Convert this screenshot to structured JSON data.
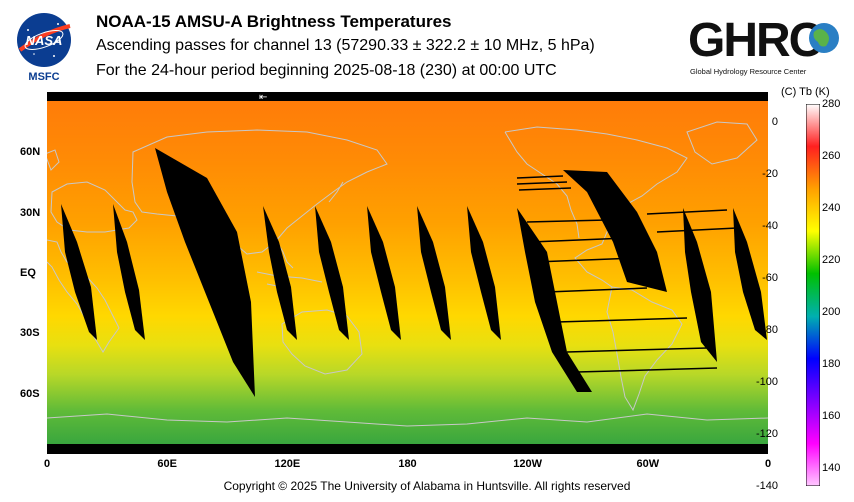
{
  "header": {
    "title": "NOAA-15 AMSU-A Brightness Temperatures",
    "subtitle": "Ascending passes for channel 13 (57290.33 ± 322.2 ± 10 MHz, 5 hPa)",
    "period": "For the 24-hour period beginning 2025-08-18 (230) at 00:00 UTC"
  },
  "logos": {
    "nasa_text": "NASA",
    "nasa_sub": "MSFC",
    "ghrc_text": "GHRC",
    "ghrc_sub": "Global Hydrology Resource Center"
  },
  "map": {
    "arrow_glyph": "⇤",
    "x_tick_labels": [
      "0",
      "60E",
      "120E",
      "180",
      "120W",
      "60W",
      "0"
    ],
    "y_tick_labels": [
      "60N",
      "30N",
      "EQ",
      "30S",
      "60S"
    ],
    "lat_values": [
      60,
      30,
      0,
      -30,
      -60
    ],
    "lon_values": [
      0,
      60,
      120,
      180,
      240,
      300,
      360
    ],
    "colors": {
      "warm_north": "#ff7a0a",
      "mid": "#ffa000",
      "tropics": "#ffd800",
      "south_yellow": "#ccdd22",
      "south_green": "#33aa33",
      "coast": "#c8c8c8",
      "missing": "#000000"
    }
  },
  "colorbar": {
    "title": "(C)  Tb  (K)",
    "kelvin_labels": [
      "280",
      "260",
      "240",
      "220",
      "200",
      "180",
      "160",
      "140"
    ],
    "kelvin_values": [
      280,
      260,
      240,
      220,
      200,
      180,
      160,
      140
    ],
    "celsius_labels": [
      "0",
      "-20",
      "-40",
      "-60",
      "-80",
      "-100",
      "-120",
      "-140"
    ],
    "celsius_values": [
      0,
      -20,
      -40,
      -60,
      -80,
      -100,
      -120,
      -140
    ],
    "range_k": [
      133,
      280
    ],
    "stops": [
      "#ffffff",
      "#ff2020",
      "#ffa000",
      "#ffff00",
      "#00c000",
      "#00b0b0",
      "#0000ff",
      "#8000ff",
      "#ff00ff",
      "#ffc8ff"
    ]
  },
  "footer": {
    "copyright": "Copyright © 2025 The University of Alabama in Huntsville.  All rights reserved"
  }
}
